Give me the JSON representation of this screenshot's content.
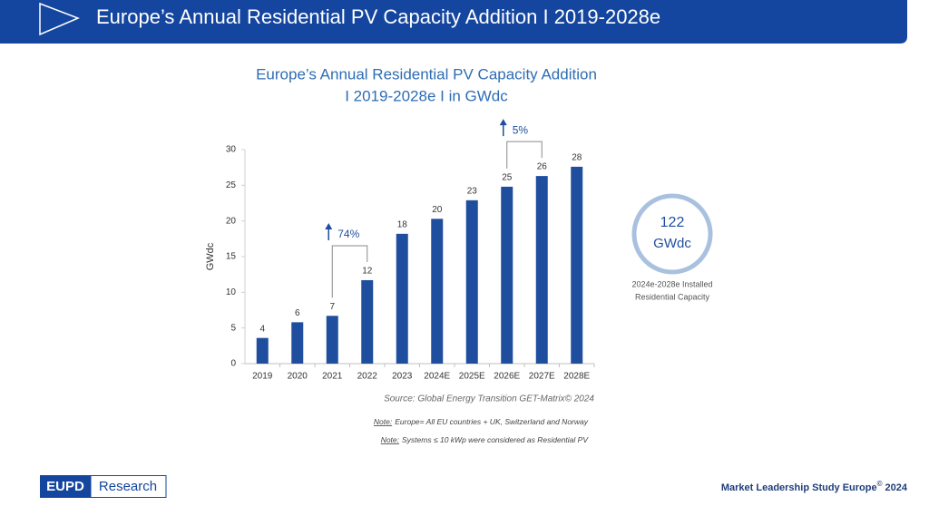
{
  "header": {
    "title": "Europe’s Annual Residential PV Capacity Addition I 2019-2028e"
  },
  "chart_data": {
    "type": "bar",
    "title": [
      "Europe’s Annual Residential PV Capacity Addition",
      "I 2019-2028e I in GWdc"
    ],
    "y_label": "GWdc",
    "categories": [
      "2019",
      "2020",
      "2021",
      "2022",
      "2023",
      "2024E",
      "2025E",
      "2026E",
      "2027E",
      "2028E"
    ],
    "values": [
      3.6,
      5.8,
      6.7,
      11.7,
      18.2,
      20.3,
      22.9,
      24.8,
      26.3,
      27.6
    ],
    "value_labels": [
      "4",
      "6",
      "7",
      "12",
      "18",
      "20",
      "23",
      "25",
      "26",
      "28"
    ],
    "color": "#1f4e9e",
    "ylim": [
      0,
      30
    ],
    "yticks": [
      0,
      5,
      10,
      15,
      20,
      25,
      30
    ],
    "annotations": [
      "74%",
      "5%"
    ],
    "source": "Source: Global Energy Transition GET-Matrix© 2024"
  },
  "callout": {
    "value": 122,
    "unit": "GWdc",
    "caption": [
      "2024e-2028e Installed",
      "Residential Capacity"
    ]
  },
  "notes": [
    {
      "label": "Note:",
      "text": "Europe= All EU countries + UK, Switzerland and Norway"
    },
    {
      "label": "Note:",
      "text": "Systems ≤ 10 kWp were considered as Residential PV"
    }
  ],
  "footer": {
    "logo": [
      "EUPD",
      "Research"
    ],
    "study": "Market Leadership Study Europe",
    "mark": "©",
    "year": "2024"
  }
}
